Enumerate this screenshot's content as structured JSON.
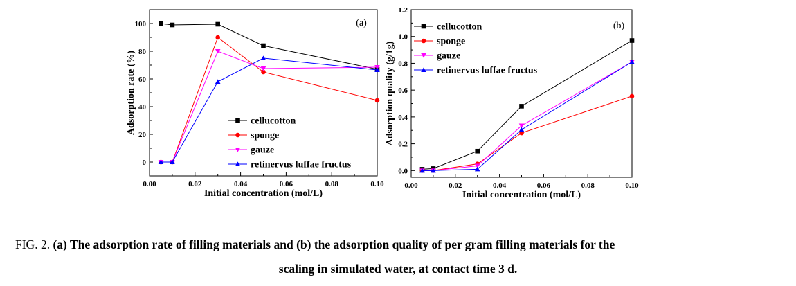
{
  "caption": {
    "prefix": "FIG. 2.",
    "line1": "(a) The adsorption rate of filling materials and (b) the adsorption quality of per gram filling materials for the",
    "line2": "scaling in simulated water, at contact time 3 d."
  },
  "colors": {
    "cellucotton": "#000000",
    "sponge": "#ff0000",
    "gauze": "#ff00ff",
    "retinervus luffae fructus": "#0000ff"
  },
  "chart_data": [
    {
      "type": "line",
      "panel_label": "(a)",
      "xlabel": "Initial concentration (mol/L)",
      "ylabel": "Adsorption rate (%)",
      "xlim": [
        0.0,
        0.1
      ],
      "ylim": [
        -10,
        110
      ],
      "xticks": [
        0.0,
        0.02,
        0.04,
        0.06,
        0.08,
        0.1
      ],
      "xtick_labels": [
        "0.00",
        "0.02",
        "0.04",
        "0.06",
        "0.08",
        "0.10"
      ],
      "yticks": [
        0,
        20,
        40,
        60,
        80,
        100
      ],
      "ytick_labels": [
        "0",
        "20",
        "40",
        "60",
        "80",
        "100"
      ],
      "legend_position": "bottom-right",
      "x": [
        0.005,
        0.01,
        0.03,
        0.05,
        0.1
      ],
      "series": [
        {
          "name": "cellucotton",
          "marker": "square",
          "values": [
            100,
            99,
            99.5,
            84,
            67
          ]
        },
        {
          "name": "sponge",
          "marker": "circle",
          "values": [
            0,
            0,
            90,
            65,
            44.5
          ]
        },
        {
          "name": "gauze",
          "marker": "triangle-down",
          "values": [
            0,
            0,
            80,
            67.5,
            68.5
          ]
        },
        {
          "name": "retinervus luffae fructus",
          "marker": "triangle-up",
          "values": [
            0,
            0,
            58,
            75,
            66.5
          ]
        }
      ]
    },
    {
      "type": "line",
      "panel_label": "(b)",
      "xlabel": "Initial concentration (mol/L)",
      "ylabel": "Adsorption quality (g/1g)",
      "xlim": [
        0.0,
        0.1
      ],
      "ylim": [
        -0.05,
        1.2
      ],
      "xticks": [
        0.0,
        0.02,
        0.04,
        0.06,
        0.08,
        0.1
      ],
      "xtick_labels": [
        "0.00",
        "0.02",
        "0.04",
        "0.06",
        "0.08",
        "0.10"
      ],
      "yticks": [
        0.0,
        0.2,
        0.4,
        0.6,
        0.8,
        1.0,
        1.2
      ],
      "ytick_labels": [
        "0.0",
        "0.2",
        "0.4",
        "0.6",
        "0.8",
        "1.0",
        "1.2"
      ],
      "legend_position": "top-left",
      "x": [
        0.005,
        0.01,
        0.03,
        0.05,
        0.1
      ],
      "series": [
        {
          "name": "cellucotton",
          "marker": "square",
          "values": [
            0.01,
            0.015,
            0.145,
            0.48,
            0.97
          ]
        },
        {
          "name": "sponge",
          "marker": "circle",
          "values": [
            0.0,
            0.0,
            0.05,
            0.28,
            0.555
          ]
        },
        {
          "name": "gauze",
          "marker": "triangle-down",
          "values": [
            0.0,
            0.0,
            0.035,
            0.335,
            0.81
          ]
        },
        {
          "name": "retinervus luffae fructus",
          "marker": "triangle-up",
          "values": [
            0.0,
            0.0,
            0.01,
            0.305,
            0.81
          ]
        }
      ]
    }
  ]
}
